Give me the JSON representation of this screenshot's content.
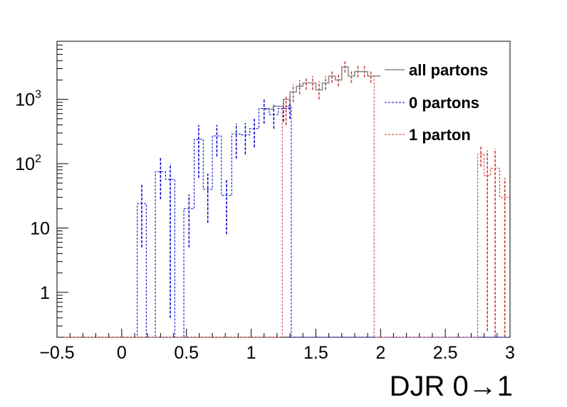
{
  "chart_data": {
    "type": "histogram",
    "title": "",
    "xlabel": "DJR 0→1",
    "ylabel": "",
    "xlim": [
      -0.5,
      3.0
    ],
    "ylim": [
      0.2,
      8000
    ],
    "y_scale": "log",
    "grid": false,
    "legend_position": "top-right",
    "x_ticks": [
      "−0.5",
      "0",
      "0.5",
      "1",
      "1.5",
      "2",
      "2.5",
      "3"
    ],
    "y_ticks": [
      {
        "base": "1",
        "exp": ""
      },
      {
        "base": "10",
        "exp": ""
      },
      {
        "base": "10",
        "exp": "2"
      },
      {
        "base": "10",
        "exp": "3"
      }
    ],
    "bin_edges": [
      1.1,
      1.17,
      1.25,
      1.3,
      1.35,
      1.4,
      1.45,
      1.5,
      1.55,
      1.6,
      1.65,
      1.7,
      1.75,
      1.8,
      1.85,
      1.9,
      1.95,
      2.0
    ],
    "series": [
      {
        "name": "all partons",
        "color": "#888888",
        "dash": "solid",
        "bins": [
          {
            "lo": 1.1,
            "hi": 1.17,
            "y": 700
          },
          {
            "lo": 1.17,
            "hi": 1.25,
            "y": 780
          },
          {
            "lo": 1.25,
            "hi": 1.3,
            "y": 1000
          },
          {
            "lo": 1.3,
            "hi": 1.35,
            "y": 1300
          },
          {
            "lo": 1.35,
            "hi": 1.4,
            "y": 1600
          },
          {
            "lo": 1.4,
            "hi": 1.45,
            "y": 1800
          },
          {
            "lo": 1.45,
            "hi": 1.5,
            "y": 1800
          },
          {
            "lo": 1.5,
            "hi": 1.55,
            "y": 1400
          },
          {
            "lo": 1.55,
            "hi": 1.6,
            "y": 1800
          },
          {
            "lo": 1.6,
            "hi": 1.65,
            "y": 2300
          },
          {
            "lo": 1.65,
            "hi": 1.7,
            "y": 2000
          },
          {
            "lo": 1.7,
            "hi": 1.75,
            "y": 3200
          },
          {
            "lo": 1.75,
            "hi": 1.8,
            "y": 2300
          },
          {
            "lo": 1.8,
            "hi": 1.85,
            "y": 2700
          },
          {
            "lo": 1.85,
            "hi": 1.9,
            "y": 2700
          },
          {
            "lo": 1.9,
            "hi": 1.95,
            "y": 2300
          },
          {
            "lo": 1.95,
            "hi": 2.0,
            "y": 2300
          }
        ]
      },
      {
        "name": "0 partons",
        "color": "#0000cc",
        "dash": "3,2",
        "bins": [
          {
            "lo": -0.5,
            "hi": 0.12,
            "y": null
          },
          {
            "lo": 0.12,
            "hi": 0.19,
            "y": 24,
            "err": [
              5,
              48
            ]
          },
          {
            "lo": 0.19,
            "hi": 0.26,
            "y": null
          },
          {
            "lo": 0.26,
            "hi": 0.34,
            "y": 75,
            "err": [
              28,
              125
            ]
          },
          {
            "lo": 0.34,
            "hi": 0.41,
            "y": 57,
            "err": [
              0.4,
              100
            ]
          },
          {
            "lo": 0.41,
            "hi": 0.48,
            "y": null
          },
          {
            "lo": 0.48,
            "hi": 0.56,
            "y": 20,
            "err": [
              5,
              33
            ]
          },
          {
            "lo": 0.56,
            "hi": 0.63,
            "y": 240,
            "err": [
              60,
              400
            ]
          },
          {
            "lo": 0.63,
            "hi": 0.7,
            "y": 40,
            "err": [
              12,
              70
            ]
          },
          {
            "lo": 0.7,
            "hi": 0.77,
            "y": 270,
            "err": [
              130,
              400
            ]
          },
          {
            "lo": 0.77,
            "hi": 0.85,
            "y": 32,
            "err": [
              8,
              58
            ]
          },
          {
            "lo": 0.85,
            "hi": 0.92,
            "y": 290,
            "err": [
              120,
              420
            ]
          },
          {
            "lo": 0.92,
            "hi": 0.99,
            "y": 280,
            "err": [
              140,
              430
            ]
          },
          {
            "lo": 0.99,
            "hi": 1.06,
            "y": 350,
            "err": [
              180,
              500
            ]
          },
          {
            "lo": 1.06,
            "hi": 1.14,
            "y": 720,
            "err": [
              420,
              1050
            ]
          },
          {
            "lo": 1.14,
            "hi": 1.21,
            "y": 580,
            "err": [
              350,
              820
            ]
          },
          {
            "lo": 1.21,
            "hi": 1.29,
            "y": 720,
            "err": [
              450,
              1020
            ]
          },
          {
            "lo": 1.29,
            "hi": 1.31,
            "y": 800,
            "err": [
              500,
              1100
            ]
          },
          {
            "lo": 1.31,
            "hi": 3.0,
            "y": null
          }
        ]
      },
      {
        "name": "1 parton",
        "color": "#cc3333",
        "dash": "3,2",
        "bins": [
          {
            "lo": -0.5,
            "hi": 1.24,
            "y": null
          },
          {
            "lo": 1.24,
            "hi": 1.3,
            "y": 780,
            "err": [
              400,
              1100
            ]
          },
          {
            "lo": 1.3,
            "hi": 1.35,
            "y": 1300,
            "err": [
              900,
              1700
            ]
          },
          {
            "lo": 1.35,
            "hi": 1.4,
            "y": 1600,
            "err": [
              1200,
              2000
            ]
          },
          {
            "lo": 1.4,
            "hi": 1.45,
            "y": 1800,
            "err": [
              1400,
              2200
            ]
          },
          {
            "lo": 1.45,
            "hi": 1.5,
            "y": 1800,
            "err": [
              1400,
              2300
            ]
          },
          {
            "lo": 1.5,
            "hi": 1.55,
            "y": 1400,
            "err": [
              1000,
              1900
            ]
          },
          {
            "lo": 1.55,
            "hi": 1.6,
            "y": 1800,
            "err": [
              1400,
              2300
            ]
          },
          {
            "lo": 1.6,
            "hi": 1.65,
            "y": 2300,
            "err": [
              1800,
              2800
            ]
          },
          {
            "lo": 1.65,
            "hi": 1.7,
            "y": 2000,
            "err": [
              1600,
              2500
            ]
          },
          {
            "lo": 1.7,
            "hi": 1.75,
            "y": 3200,
            "err": [
              2600,
              3900
            ]
          },
          {
            "lo": 1.75,
            "hi": 1.8,
            "y": 2300,
            "err": [
              1800,
              2800
            ]
          },
          {
            "lo": 1.8,
            "hi": 1.85,
            "y": 2700,
            "err": [
              2200,
              3300
            ]
          },
          {
            "lo": 1.85,
            "hi": 1.9,
            "y": 2700,
            "err": [
              2200,
              3300
            ]
          },
          {
            "lo": 1.9,
            "hi": 1.95,
            "y": 2300,
            "err": [
              1800,
              2800
            ]
          },
          {
            "lo": 1.95,
            "hi": 2.0,
            "y": null
          },
          {
            "lo": 2.0,
            "hi": 2.75,
            "y": null
          },
          {
            "lo": 2.75,
            "hi": 2.8,
            "y": 140,
            "err": [
              90,
              190
            ]
          },
          {
            "lo": 2.8,
            "hi": 2.85,
            "y": 65,
            "err": [
              0.25,
              160
            ]
          },
          {
            "lo": 2.85,
            "hi": 2.92,
            "y": 85,
            "err": [
              0.2,
              170
            ]
          },
          {
            "lo": 2.92,
            "hi": 3.0,
            "y": 30,
            "err": [
              0.2,
              60
            ]
          }
        ]
      }
    ]
  }
}
